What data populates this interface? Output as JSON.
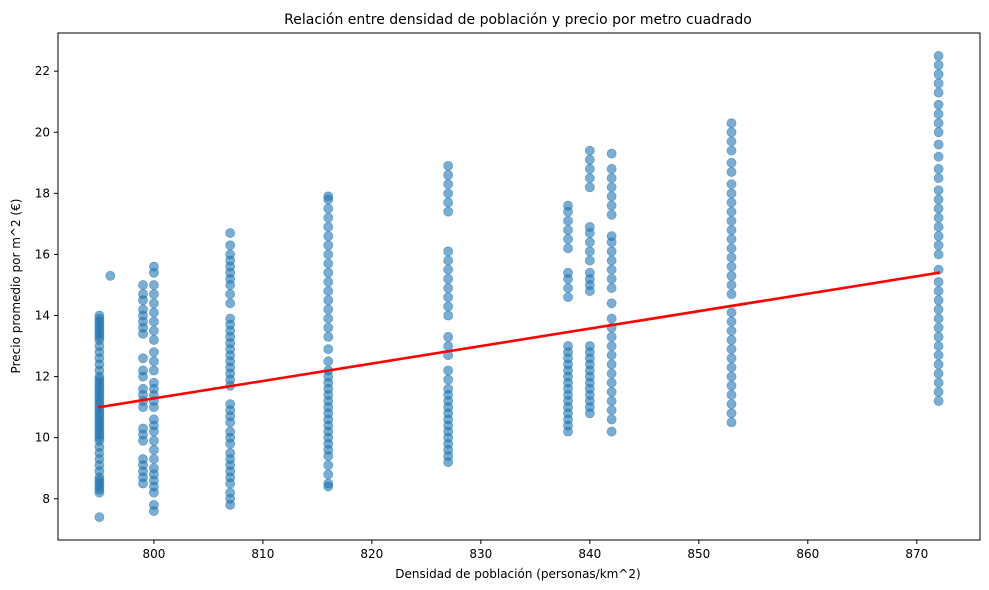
{
  "chart_data": {
    "type": "scatter",
    "title": "Relación entre densidad de población y precio por metro cuadrado",
    "xlabel": "Densidad de población (personas/km^2)",
    "ylabel": "Precio promedio por m^2 (€)",
    "xlim": [
      791.2,
      875.8
    ],
    "ylim": [
      6.65,
      23.25
    ],
    "xticks": [
      800,
      810,
      820,
      830,
      840,
      850,
      860,
      870
    ],
    "yticks": [
      8,
      10,
      12,
      14,
      16,
      18,
      20,
      22
    ],
    "grid": false,
    "point_color": "#1f77b4",
    "point_alpha": 0.6,
    "point_groups": [
      {
        "x": 795,
        "y_values": [
          7.4,
          8.2,
          8.3,
          8.4,
          8.5,
          8.6,
          8.7,
          8.9,
          9.1,
          9.3,
          9.5,
          9.7,
          9.9,
          10.0,
          10.1,
          10.2,
          10.3,
          10.4,
          10.5,
          10.6,
          10.7,
          10.8,
          10.9,
          11.0,
          11.1,
          11.2,
          11.3,
          11.4,
          11.5,
          11.6,
          11.7,
          11.8,
          11.9,
          12.0,
          12.2,
          12.4,
          12.6,
          12.8,
          13.0,
          13.2,
          13.3,
          13.4,
          13.5,
          13.6,
          13.7,
          13.8,
          13.9,
          14.0
        ]
      },
      {
        "x": 796,
        "y_values": [
          15.3
        ]
      },
      {
        "x": 799,
        "y_values": [
          8.5,
          8.7,
          8.9,
          9.1,
          9.3,
          9.9,
          10.1,
          10.3,
          11.0,
          11.2,
          11.4,
          11.6,
          12.0,
          12.2,
          12.6,
          13.4,
          13.6,
          13.8,
          14.0,
          14.2,
          14.5,
          14.7,
          15.0
        ]
      },
      {
        "x": 800,
        "y_values": [
          7.6,
          7.8,
          8.2,
          8.4,
          8.6,
          8.8,
          9.0,
          9.3,
          9.6,
          9.9,
          10.2,
          10.4,
          10.6,
          11.0,
          11.2,
          11.4,
          11.6,
          11.8,
          12.2,
          12.5,
          12.8,
          13.2,
          13.5,
          13.8,
          14.1,
          14.4,
          14.7,
          15.0,
          15.4,
          15.6
        ]
      },
      {
        "x": 807,
        "y_values": [
          7.8,
          8.0,
          8.2,
          8.5,
          8.7,
          8.9,
          9.1,
          9.3,
          9.5,
          9.8,
          10.0,
          10.2,
          10.5,
          10.7,
          10.9,
          11.1,
          11.7,
          11.9,
          12.1,
          12.3,
          12.5,
          12.7,
          12.9,
          13.1,
          13.3,
          13.5,
          13.7,
          13.9,
          14.4,
          14.7,
          15.0,
          15.2,
          15.4,
          15.6,
          15.8,
          16.0,
          16.3,
          16.7
        ]
      },
      {
        "x": 816,
        "y_values": [
          8.4,
          8.5,
          8.8,
          9.1,
          9.4,
          9.6,
          9.8,
          10.0,
          10.2,
          10.4,
          10.6,
          10.8,
          11.0,
          11.2,
          11.4,
          11.6,
          11.8,
          12.0,
          12.2,
          12.5,
          12.9,
          13.3,
          13.6,
          13.9,
          14.2,
          14.5,
          14.8,
          15.1,
          15.4,
          15.7,
          16.0,
          16.3,
          16.6,
          16.9,
          17.2,
          17.5,
          17.8,
          17.9
        ]
      },
      {
        "x": 827,
        "y_values": [
          9.2,
          9.4,
          9.6,
          9.8,
          10.0,
          10.2,
          10.4,
          10.6,
          10.8,
          11.0,
          11.2,
          11.4,
          11.6,
          11.9,
          12.2,
          12.7,
          13.0,
          13.3,
          14.0,
          14.3,
          14.6,
          14.9,
          15.2,
          15.5,
          15.8,
          16.1,
          17.4,
          17.7,
          18.0,
          18.3,
          18.6,
          18.9
        ]
      },
      {
        "x": 838,
        "y_values": [
          10.2,
          10.4,
          10.6,
          10.8,
          11.0,
          11.2,
          11.4,
          11.6,
          11.8,
          12.0,
          12.2,
          12.4,
          12.6,
          12.8,
          13.0,
          14.6,
          14.9,
          15.2,
          15.4,
          16.2,
          16.5,
          16.8,
          17.1,
          17.4,
          17.6
        ]
      },
      {
        "x": 840,
        "y_values": [
          10.8,
          11.0,
          11.2,
          11.4,
          11.6,
          11.8,
          12.0,
          12.2,
          12.4,
          12.6,
          12.8,
          13.0,
          14.8,
          15.0,
          15.2,
          15.4,
          15.8,
          16.1,
          16.4,
          16.7,
          16.9,
          18.2,
          18.5,
          18.8,
          19.1,
          19.4
        ]
      },
      {
        "x": 842,
        "y_values": [
          10.2,
          10.6,
          10.9,
          11.2,
          11.5,
          11.8,
          12.1,
          12.4,
          12.7,
          13.0,
          13.3,
          13.6,
          13.9,
          14.4,
          14.9,
          15.2,
          15.5,
          15.8,
          16.1,
          16.4,
          16.6,
          17.3,
          17.6,
          17.9,
          18.2,
          18.5,
          18.8,
          19.3
        ]
      },
      {
        "x": 853,
        "y_values": [
          10.5,
          10.8,
          11.1,
          11.4,
          11.7,
          12.0,
          12.3,
          12.6,
          12.9,
          13.2,
          13.5,
          13.8,
          14.1,
          14.7,
          15.0,
          15.3,
          15.6,
          15.9,
          16.2,
          16.5,
          16.8,
          17.1,
          17.4,
          17.7,
          18.0,
          18.3,
          18.7,
          19.0,
          19.4,
          19.7,
          20.0,
          20.3
        ]
      },
      {
        "x": 872,
        "y_values": [
          11.2,
          11.5,
          11.8,
          12.1,
          12.4,
          12.7,
          13.0,
          13.3,
          13.6,
          13.9,
          14.2,
          14.5,
          14.8,
          15.1,
          15.5,
          16.0,
          16.3,
          16.6,
          16.9,
          17.2,
          17.5,
          17.8,
          18.1,
          18.5,
          18.8,
          19.2,
          19.6,
          20.0,
          20.3,
          20.6,
          20.9,
          21.3,
          21.6,
          21.9,
          22.2,
          22.5
        ]
      }
    ],
    "regression_line": {
      "color": "#ff0000",
      "x": [
        795,
        872
      ],
      "y": [
        11.0,
        15.4
      ]
    }
  }
}
